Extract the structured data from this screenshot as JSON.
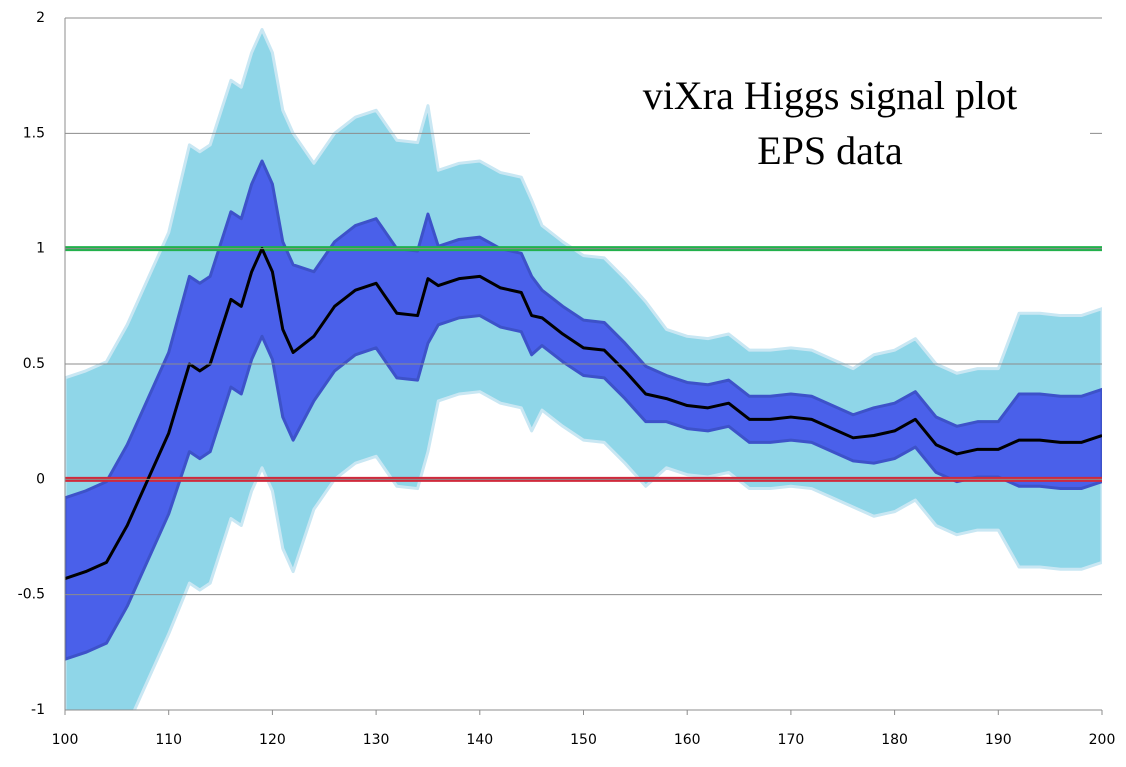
{
  "chart_data": {
    "type": "band-line",
    "title": [
      "viXra Higgs signal plot",
      "EPS data"
    ],
    "x": [
      100,
      102,
      104,
      106,
      108,
      110,
      112,
      113,
      114,
      116,
      117,
      118,
      119,
      120,
      121,
      122,
      124,
      126,
      128,
      130,
      132,
      134,
      135,
      136,
      138,
      140,
      142,
      144,
      145,
      146,
      148,
      150,
      152,
      154,
      156,
      158,
      160,
      162,
      164,
      166,
      168,
      170,
      172,
      174,
      176,
      178,
      180,
      182,
      184,
      186,
      188,
      190,
      192,
      194,
      196,
      198,
      200
    ],
    "bands": [
      {
        "color": "#8fd6e8",
        "lower": [
          -1.3,
          -1.27,
          -1.23,
          -1.07,
          -0.87,
          -0.67,
          -0.45,
          -0.48,
          -0.45,
          -0.17,
          -0.2,
          -0.05,
          0.05,
          -0.05,
          -0.3,
          -0.4,
          -0.13,
          0.0,
          0.07,
          0.1,
          -0.03,
          -0.04,
          0.12,
          0.34,
          0.37,
          0.38,
          0.33,
          0.31,
          0.21,
          0.3,
          0.23,
          0.17,
          0.16,
          0.07,
          -0.03,
          0.05,
          0.02,
          0.01,
          0.03,
          -0.04,
          -0.04,
          -0.03,
          -0.04,
          -0.08,
          -0.12,
          -0.16,
          -0.14,
          -0.09,
          -0.2,
          -0.24,
          -0.22,
          -0.22,
          -0.38,
          -0.38,
          -0.39,
          -0.39,
          -0.36
        ],
        "upper": [
          0.44,
          0.47,
          0.51,
          0.67,
          0.87,
          1.07,
          1.45,
          1.42,
          1.45,
          1.73,
          1.7,
          1.85,
          1.95,
          1.85,
          1.6,
          1.5,
          1.37,
          1.5,
          1.57,
          1.6,
          1.47,
          1.46,
          1.62,
          1.34,
          1.37,
          1.38,
          1.33,
          1.31,
          1.21,
          1.1,
          1.03,
          0.97,
          0.96,
          0.87,
          0.77,
          0.65,
          0.62,
          0.61,
          0.63,
          0.56,
          0.56,
          0.57,
          0.56,
          0.52,
          0.48,
          0.54,
          0.56,
          0.61,
          0.5,
          0.46,
          0.48,
          0.48,
          0.72,
          0.72,
          0.71,
          0.71,
          0.74
        ]
      },
      {
        "color": "#4a60ea",
        "lower": [
          -0.78,
          -0.75,
          -0.71,
          -0.55,
          -0.35,
          -0.15,
          0.12,
          0.09,
          0.12,
          0.4,
          0.37,
          0.52,
          0.62,
          0.52,
          0.27,
          0.17,
          0.34,
          0.47,
          0.54,
          0.57,
          0.44,
          0.43,
          0.59,
          0.67,
          0.7,
          0.71,
          0.66,
          0.64,
          0.54,
          0.58,
          0.51,
          0.45,
          0.44,
          0.35,
          0.25,
          0.25,
          0.22,
          0.21,
          0.23,
          0.16,
          0.16,
          0.17,
          0.16,
          0.12,
          0.08,
          0.07,
          0.09,
          0.14,
          0.03,
          -0.01,
          0.01,
          0.01,
          -0.03,
          -0.03,
          -0.04,
          -0.04,
          -0.01
        ],
        "upper": [
          -0.08,
          -0.05,
          -0.01,
          0.15,
          0.35,
          0.55,
          0.88,
          0.85,
          0.88,
          1.16,
          1.13,
          1.28,
          1.38,
          1.28,
          1.03,
          0.93,
          0.9,
          1.03,
          1.1,
          1.13,
          1.0,
          0.99,
          1.15,
          1.01,
          1.04,
          1.05,
          1.0,
          0.98,
          0.88,
          0.82,
          0.75,
          0.69,
          0.68,
          0.59,
          0.49,
          0.45,
          0.42,
          0.41,
          0.43,
          0.36,
          0.36,
          0.37,
          0.36,
          0.32,
          0.28,
          0.31,
          0.33,
          0.38,
          0.27,
          0.23,
          0.25,
          0.25,
          0.37,
          0.37,
          0.36,
          0.36,
          0.39
        ]
      }
    ],
    "series": [
      {
        "color": "#000000",
        "values": [
          -0.43,
          -0.4,
          -0.36,
          -0.2,
          0.0,
          0.2,
          0.5,
          0.47,
          0.5,
          0.78,
          0.75,
          0.9,
          1.0,
          0.9,
          0.65,
          0.55,
          0.62,
          0.75,
          0.82,
          0.85,
          0.72,
          0.71,
          0.87,
          0.84,
          0.87,
          0.88,
          0.83,
          0.81,
          0.71,
          0.7,
          0.63,
          0.57,
          0.56,
          0.47,
          0.37,
          0.35,
          0.32,
          0.31,
          0.33,
          0.26,
          0.26,
          0.27,
          0.26,
          0.22,
          0.18,
          0.19,
          0.21,
          0.26,
          0.15,
          0.11,
          0.13,
          0.13,
          0.17,
          0.17,
          0.16,
          0.16,
          0.19
        ]
      }
    ],
    "hlines": [
      {
        "value": 1,
        "color": "#22b14c"
      },
      {
        "value": 0,
        "color": "#d02a3c"
      }
    ],
    "xlim": [
      100,
      200
    ],
    "xticks": [
      100,
      110,
      120,
      130,
      140,
      150,
      160,
      170,
      180,
      190,
      200
    ],
    "ylim": [
      -1,
      2
    ],
    "yticks": [
      -1,
      -0.5,
      0,
      0.5,
      1,
      1.5,
      2
    ],
    "grid": true
  }
}
